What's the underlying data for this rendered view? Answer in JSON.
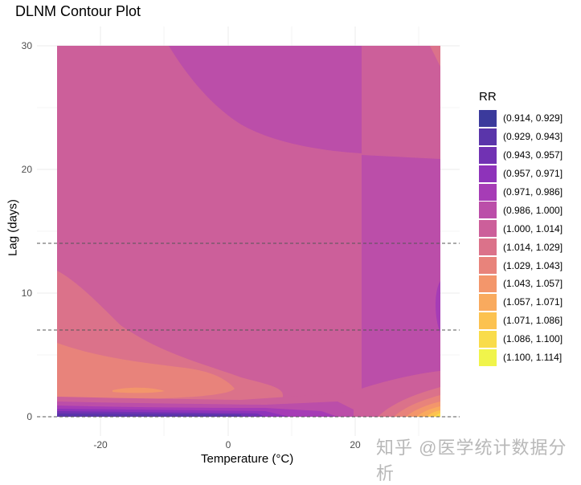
{
  "title": "DLNM Contour Plot",
  "watermark": "知乎 @医学统计数据分析",
  "axes": {
    "xlabel": "Temperature (°C)",
    "ylabel": "Lag (days)",
    "xticks": [
      "-20",
      "0",
      "20"
    ],
    "yticks": [
      "0",
      "10",
      "20",
      "30"
    ]
  },
  "legend": {
    "title": "RR",
    "items": [
      {
        "label": "(0.914, 0.929]",
        "color": "#3b3a9c"
      },
      {
        "label": "(0.929, 0.943]",
        "color": "#5a35aa"
      },
      {
        "label": "(0.943, 0.957]",
        "color": "#7132b3"
      },
      {
        "label": "(0.957, 0.971]",
        "color": "#8e33ba"
      },
      {
        "label": "(0.971, 0.986]",
        "color": "#a63cb6"
      },
      {
        "label": "(0.986, 1.000]",
        "color": "#bb4ea9"
      },
      {
        "label": "(1.000, 1.014]",
        "color": "#cc5f9a"
      },
      {
        "label": "(1.014, 1.029]",
        "color": "#db728a"
      },
      {
        "label": "(1.029, 1.043]",
        "color": "#e8837b"
      },
      {
        "label": "(1.043, 1.057]",
        "color": "#f3966b"
      },
      {
        "label": "(1.057, 1.071]",
        "color": "#f9aa5e"
      },
      {
        "label": "(1.071, 1.086]",
        "color": "#fcc250"
      },
      {
        "label": "(1.086, 1.100]",
        "color": "#f9dc4a"
      },
      {
        "label": "(1.100, 1.114]",
        "color": "#f0f44b"
      }
    ]
  },
  "chart_data": {
    "type": "heatmap",
    "subtype": "filled-contour",
    "title": "DLNM Contour Plot",
    "xlabel": "Temperature (°C)",
    "ylabel": "Lag (days)",
    "xlim": [
      -27,
      33
    ],
    "ylim": [
      0,
      30
    ],
    "xticks": [
      -20,
      0,
      20
    ],
    "yticks": [
      0,
      10,
      20,
      30
    ],
    "grid": true,
    "reference_lines": {
      "type": "horizontal-dashed",
      "y": [
        0,
        7,
        14
      ]
    },
    "legend_position": "right",
    "fill_variable": "RR",
    "bins": [
      [
        0.914,
        0.929
      ],
      [
        0.929,
        0.943
      ],
      [
        0.943,
        0.957
      ],
      [
        0.957,
        0.971
      ],
      [
        0.971,
        0.986
      ],
      [
        0.986,
        1.0
      ],
      [
        1.0,
        1.014
      ],
      [
        1.014,
        1.029
      ],
      [
        1.029,
        1.043
      ],
      [
        1.043,
        1.057
      ],
      [
        1.057,
        1.071
      ],
      [
        1.071,
        1.086
      ],
      [
        1.086,
        1.1
      ],
      [
        1.1,
        1.114
      ]
    ],
    "regions": [
      {
        "description": "background across most of surface",
        "bin": "(1.000, 1.014]"
      },
      {
        "description": "upper middle lobe, temp ~-9 to 21, lag ~21-30",
        "bin": "(0.986, 1.000]"
      },
      {
        "description": "vertical band temp ~21-33, lag ~2-21",
        "bin": "(0.986, 1.000]"
      },
      {
        "description": "cold temps, lag ~2-12",
        "bin": "(1.014, 1.029]"
      },
      {
        "description": "cold temps, lag ~2-6",
        "bin": "(1.029, 1.043]"
      },
      {
        "description": "small lobe temp ~-18 to -9, lag ~2",
        "bin": "(1.043, 1.057]"
      },
      {
        "description": "lag 0-1 band across cold/moderate temps",
        "bin": "(0.914, 0.986]"
      },
      {
        "description": "hot corner temp ~28-33, lag 0-3",
        "bin": "(1.014, 1.114]"
      }
    ]
  }
}
